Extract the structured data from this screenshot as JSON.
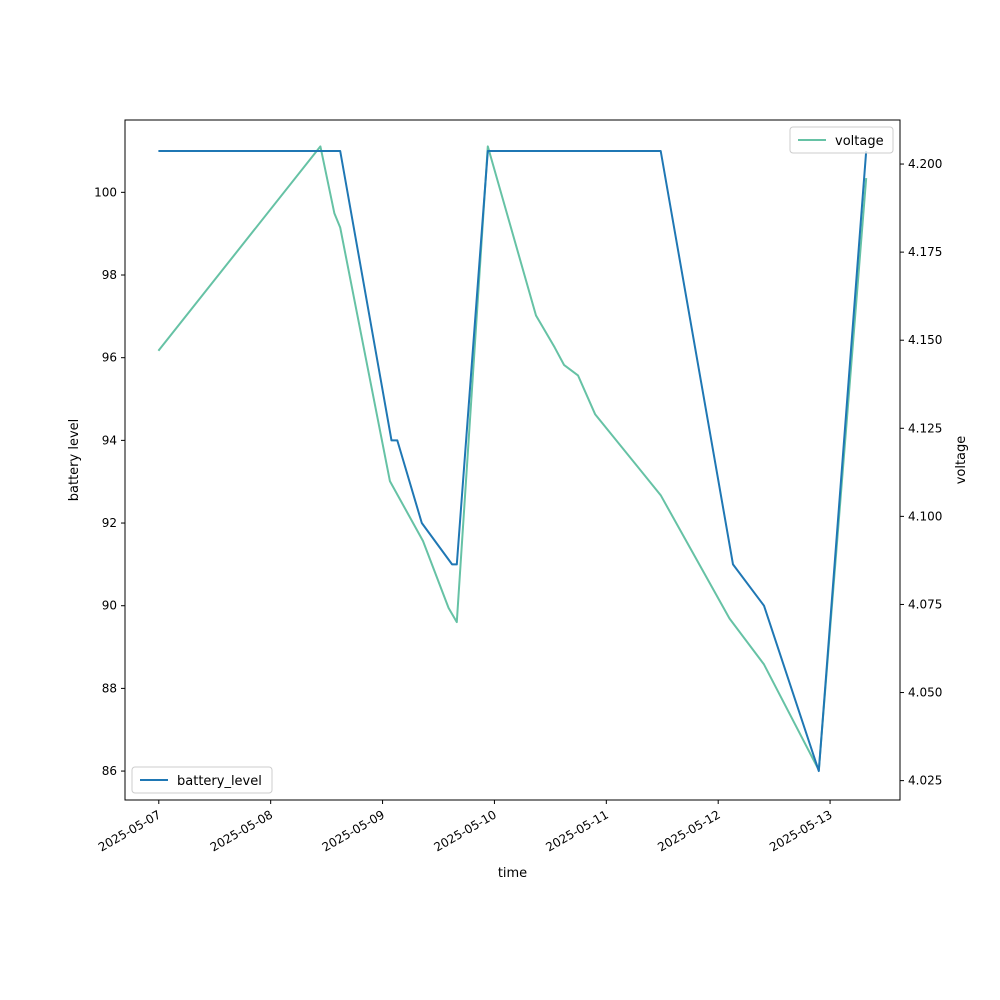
{
  "chart_data": {
    "type": "line",
    "xlabel": "time",
    "ylabel": "battery level",
    "ylabel_right": "voltage",
    "x_ticks": [
      "2025-05-07",
      "2025-05-08",
      "2025-05-09",
      "2025-05-10",
      "2025-05-11",
      "2025-05-12",
      "2025-05-13"
    ],
    "xlim": [
      "2025-05-06T16:45",
      "2025-05-13T15:00"
    ],
    "ylim": [
      85.3,
      101.75
    ],
    "y_ticks": [
      "86",
      "88",
      "90",
      "92",
      "94",
      "96",
      "98",
      "100"
    ],
    "ylim_right": [
      4.0195,
      4.2125
    ],
    "y_ticks_right": [
      "4.025",
      "4.050",
      "4.075",
      "4.100",
      "4.125",
      "4.150",
      "4.175",
      "4.200"
    ],
    "grid": false,
    "series": [
      {
        "name": "battery_level",
        "axis": "left",
        "color": "#1f77b4",
        "legend_position": "lower-left",
        "points": [
          [
            "2025-05-06T23:55",
            101
          ],
          [
            "2025-05-08T14:55",
            101
          ],
          [
            "2025-05-09T01:55",
            94
          ],
          [
            "2025-05-09T03:10",
            94
          ],
          [
            "2025-05-09T08:25",
            92
          ],
          [
            "2025-05-09T14:55",
            91
          ],
          [
            "2025-05-09T15:55",
            91
          ],
          [
            "2025-05-09T22:35",
            101
          ],
          [
            "2025-05-11T11:40",
            101
          ],
          [
            "2025-05-12T03:10",
            91
          ],
          [
            "2025-05-12T09:50",
            90
          ],
          [
            "2025-05-12T21:35",
            86
          ],
          [
            "2025-05-13T07:45",
            101
          ]
        ]
      },
      {
        "name": "voltage",
        "axis": "right",
        "color": "#66c2a5",
        "legend_position": "upper-right",
        "points": [
          [
            "2025-05-06T23:55",
            4.147
          ],
          [
            "2025-05-08T10:40",
            4.205
          ],
          [
            "2025-05-08T13:40",
            4.186
          ],
          [
            "2025-05-08T14:55",
            4.182
          ],
          [
            "2025-05-09T01:35",
            4.11
          ],
          [
            "2025-05-09T08:40",
            4.093
          ],
          [
            "2025-05-09T14:10",
            4.074
          ],
          [
            "2025-05-09T15:55",
            4.07
          ],
          [
            "2025-05-09T22:35",
            4.205
          ],
          [
            "2025-05-10T08:55",
            4.157
          ],
          [
            "2025-05-10T12:55",
            4.148
          ],
          [
            "2025-05-10T14:55",
            4.143
          ],
          [
            "2025-05-10T17:55",
            4.14
          ],
          [
            "2025-05-10T21:35",
            4.129
          ],
          [
            "2025-05-11T11:40",
            4.106
          ],
          [
            "2025-05-12T02:25",
            4.071
          ],
          [
            "2025-05-12T09:50",
            4.058
          ],
          [
            "2025-05-12T21:35",
            4.028
          ],
          [
            "2025-05-13T07:45",
            4.196
          ]
        ]
      }
    ]
  }
}
